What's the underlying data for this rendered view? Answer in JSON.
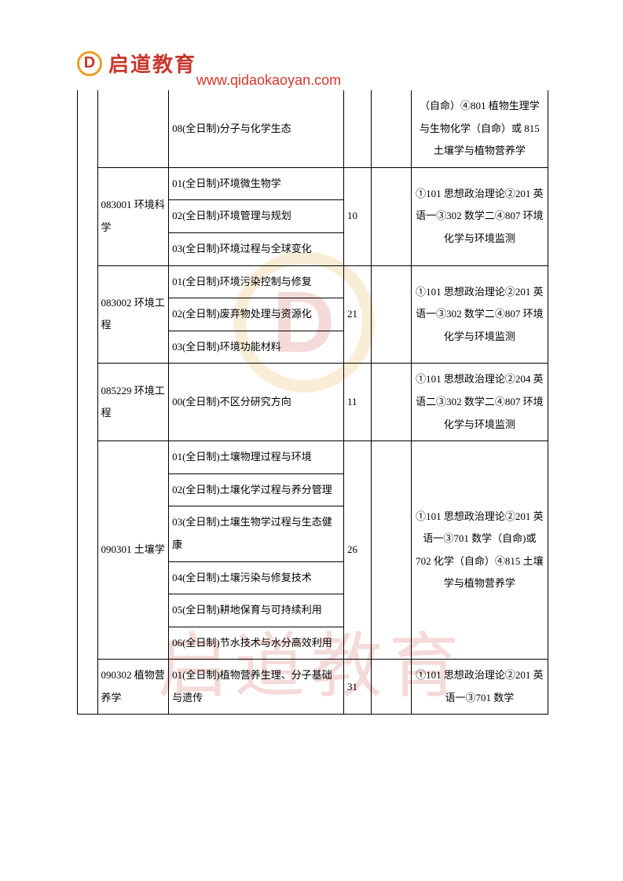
{
  "header": {
    "brand": "启道教育",
    "url": "www.qidaokaoyan.com"
  },
  "watermark": {
    "text": "启道教育"
  },
  "colors": {
    "brand_red": "#c8372d",
    "brand_orange": "#e8a028",
    "border": "#000000"
  },
  "rows": [
    {
      "major": "",
      "directions": [
        "08(全日制)分子与化学生态"
      ],
      "num": "",
      "exam": "（自命）④801 植物生理学与生物化学（自命）或 815 土壤学与植物营养学",
      "continued": true
    },
    {
      "major": "083001 环境科学",
      "directions": [
        "01(全日制)环境微生物学",
        "02(全日制)环境管理与规划",
        "03(全日制)环境过程与全球变化"
      ],
      "num": "10",
      "exam": "①101 思想政治理论②201 英语一③302 数学二④807 环境化学与环境监测"
    },
    {
      "major": "083002 环境工程",
      "directions": [
        "01(全日制)环境污染控制与修复",
        "02(全日制)废弃物处理与资源化",
        "03(全日制)环境功能材料"
      ],
      "num": "21",
      "exam": "①101 思想政治理论②201 英语一③302 数学二④807 环境化学与环境监测"
    },
    {
      "major": "085229 环境工程",
      "directions": [
        "00(全日制)不区分研究方向"
      ],
      "num": "11",
      "exam": "①101 思想政治理论②204 英语二③302 数学二④807 环境化学与环境监测"
    },
    {
      "major": "090301 土壤学",
      "directions": [
        "01(全日制)土壤物理过程与环境",
        "02(全日制)土壤化学过程与养分管理",
        "03(全日制)土壤生物学过程与生态健康",
        "04(全日制)土壤污染与修复技术",
        "05(全日制)耕地保育与可持续利用",
        "06(全日制)节水技术与水分高效利用"
      ],
      "num": "26",
      "exam": "①101 思想政治理论②201 英语一③701 数学（自命)或 702 化学（自命）④815 土壤学与植物营养学"
    },
    {
      "major": "090302 植物营养学",
      "directions": [
        "01(全日制)植物营养生理、分子基础与遗传"
      ],
      "num": "31",
      "exam": "①101 思想政治理论②201 英语一③701 数学"
    }
  ]
}
